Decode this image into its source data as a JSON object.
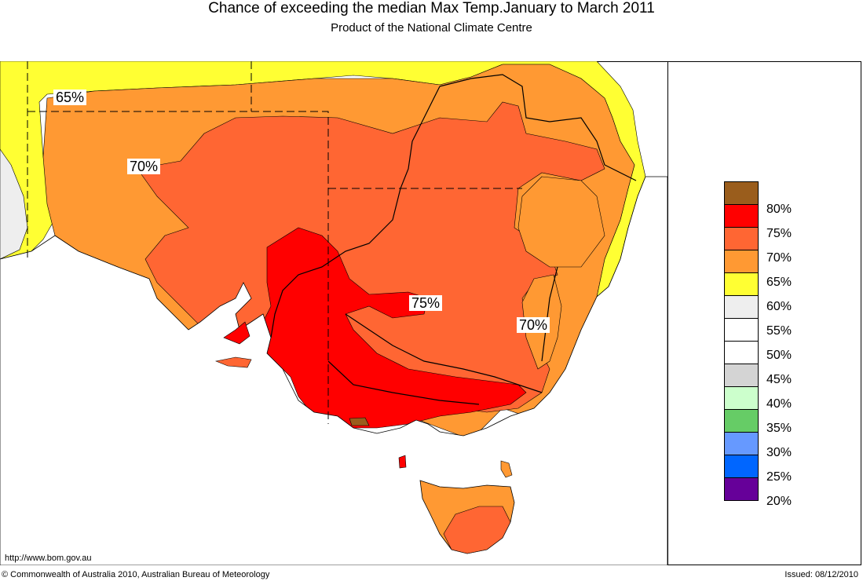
{
  "title": "Chance of exceeding the median Max Temp.January to March 2011",
  "subtitle": "Product of the National Climate Centre",
  "map_labels": [
    "65%",
    "70%",
    "75%",
    "70%"
  ],
  "legend": {
    "items": [
      {
        "label": "80%",
        "color": "#9a5d1c"
      },
      {
        "label": "75%",
        "color": "#ff0000"
      },
      {
        "label": "70%",
        "color": "#ff6633"
      },
      {
        "label": "65%",
        "color": "#ff9933"
      },
      {
        "label": "60%",
        "color": "#ffff33"
      },
      {
        "label": "55%",
        "color": "#eeeeee"
      },
      {
        "label": "50%",
        "color": "#ffffff"
      },
      {
        "label": "45%",
        "color": "#ffffff"
      },
      {
        "label": "40%",
        "color": "#d4d4d4"
      },
      {
        "label": "35%",
        "color": "#ccffcc"
      },
      {
        "label": "30%",
        "color": "#66cc66"
      },
      {
        "label": "25%",
        "color": "#6699ff"
      },
      {
        "label": "20%",
        "color": "#0066ff"
      },
      {
        "label": "",
        "color": "#660099"
      }
    ]
  },
  "footer": {
    "url": "http://www.bom.gov.au",
    "copyright": "© Commonwealth of Australia 2010, Australian Bureau of Meteorology",
    "issued": "Issued: 08/12/2010"
  }
}
